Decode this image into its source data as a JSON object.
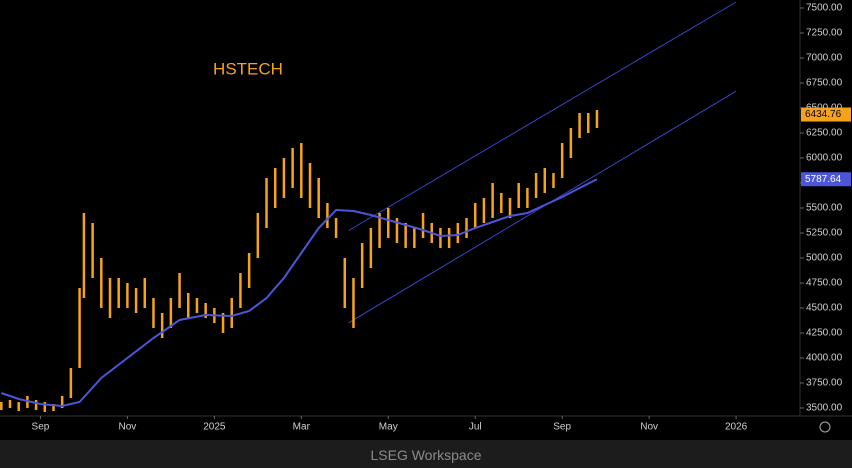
{
  "chart_data": {
    "type": "range",
    "title": "HSTECH",
    "color": "#f7a21b",
    "x": [
      7.1,
      7.3,
      7.5,
      7.7,
      7.9,
      8.1,
      8.3,
      8.5,
      8.7,
      8.9,
      9.0,
      9.2,
      9.4,
      9.6,
      9.8,
      10.0,
      10.2,
      10.4,
      10.6,
      10.8,
      11.0,
      11.2,
      11.4,
      11.6,
      11.8,
      12.0,
      12.2,
      12.4,
      12.6,
      12.8,
      13.0,
      13.2,
      13.4,
      13.6,
      13.8,
      14.0,
      14.2,
      14.4,
      14.6,
      14.8,
      15.0,
      15.2,
      15.4,
      15.6,
      15.8,
      16.0,
      16.2,
      16.4,
      16.6,
      16.8,
      17.0,
      17.2,
      17.4,
      17.6,
      17.8,
      18.0,
      18.2,
      18.4,
      18.6,
      18.8,
      19.0,
      19.2,
      19.4,
      19.6,
      19.8,
      20.0,
      20.2,
      20.4,
      20.6,
      20.8
    ],
    "low": [
      3480,
      3500,
      3470,
      3500,
      3480,
      3460,
      3470,
      3500,
      3600,
      3900,
      4600,
      4800,
      4500,
      4400,
      4500,
      4500,
      4450,
      4500,
      4300,
      4200,
      4300,
      4500,
      4400,
      4450,
      4400,
      4350,
      4250,
      4300,
      4500,
      4700,
      5000,
      5300,
      5500,
      5600,
      5700,
      5600,
      5500,
      5400,
      5300,
      5200,
      4500,
      4300,
      4700,
      4900,
      5100,
      5200,
      5150,
      5100,
      5100,
      5200,
      5150,
      5100,
      5100,
      5150,
      5200,
      5300,
      5350,
      5400,
      5450,
      5400,
      5500,
      5500,
      5600,
      5650,
      5700,
      5800,
      6000,
      6200,
      6250,
      6300
    ],
    "high": [
      3560,
      3580,
      3560,
      3620,
      3580,
      3560,
      3540,
      3620,
      3900,
      4700,
      5450,
      5350,
      5000,
      4800,
      4800,
      4750,
      4700,
      4800,
      4600,
      4450,
      4600,
      4850,
      4650,
      4600,
      4550,
      4500,
      4450,
      4600,
      4850,
      5050,
      5450,
      5800,
      5900,
      6000,
      6100,
      6150,
      5950,
      5800,
      5550,
      5400,
      5000,
      4800,
      5150,
      5300,
      5450,
      5500,
      5400,
      5350,
      5300,
      5450,
      5350,
      5300,
      5300,
      5350,
      5400,
      5550,
      5600,
      5750,
      5650,
      5600,
      5750,
      5700,
      5850,
      5900,
      5850,
      6150,
      6300,
      6450,
      6450,
      6480
    ],
    "ma": {
      "color": "#4b56d8",
      "x": [
        7.1,
        7.5,
        8.0,
        8.5,
        8.9,
        9.4,
        10.0,
        10.6,
        11.2,
        11.8,
        12.4,
        12.8,
        13.2,
        13.6,
        14.0,
        14.4,
        14.8,
        15.2,
        15.6,
        16.0,
        16.4,
        16.8,
        17.2,
        17.6,
        18.0,
        18.4,
        18.8,
        19.2,
        19.6,
        20.0,
        20.4,
        20.8
      ],
      "values": [
        3650,
        3590,
        3540,
        3520,
        3560,
        3800,
        4000,
        4200,
        4380,
        4430,
        4420,
        4470,
        4600,
        4800,
        5050,
        5300,
        5480,
        5470,
        5430,
        5380,
        5330,
        5280,
        5220,
        5230,
        5300,
        5360,
        5420,
        5450,
        5530,
        5610,
        5700,
        5787.64
      ]
    },
    "trendlines": {
      "color": "#3a44c8",
      "x": [
        15.09,
        24.0
      ],
      "upper": [
        5275,
        7560
      ],
      "lower": [
        4352,
        6668
      ]
    },
    "last_price": 6434.76,
    "ma_last": 5787.64,
    "xlim": [
      7.07,
      25.47
    ],
    "ylim": [
      3420,
      7580
    ],
    "xticks": [
      {
        "value": 8,
        "label": "Sep"
      },
      {
        "value": 10,
        "label": "Nov"
      },
      {
        "value": 12,
        "label": "2025"
      },
      {
        "value": 14,
        "label": "Mar"
      },
      {
        "value": 16,
        "label": "May"
      },
      {
        "value": 18,
        "label": "Jul"
      },
      {
        "value": 20,
        "label": "Sep"
      },
      {
        "value": 22,
        "label": "Nov"
      },
      {
        "value": 24,
        "label": "2026"
      }
    ],
    "yticks": [
      {
        "value": 3500,
        "label": "3500.00"
      },
      {
        "value": 3750,
        "label": "3750.00"
      },
      {
        "value": 4000,
        "label": "4000.00"
      },
      {
        "value": 4250,
        "label": "4250.00"
      },
      {
        "value": 4500,
        "label": "4500.00"
      },
      {
        "value": 4750,
        "label": "4750.00"
      },
      {
        "value": 5000,
        "label": "5000.00"
      },
      {
        "value": 5250,
        "label": "5250.00"
      },
      {
        "value": 5500,
        "label": "5500.00"
      },
      {
        "value": 5750,
        "label": "5750.00"
      },
      {
        "value": 6000,
        "label": "6000.00"
      },
      {
        "value": 6250,
        "label": "6250.00"
      },
      {
        "value": 6500,
        "label": "6500.00"
      },
      {
        "value": 6750,
        "label": "6750.00"
      },
      {
        "value": 7000,
        "label": "7000.00"
      },
      {
        "value": 7250,
        "label": "7250.00"
      },
      {
        "value": 7500,
        "label": "7500.00"
      }
    ]
  },
  "footer": "LSEG Workspace"
}
